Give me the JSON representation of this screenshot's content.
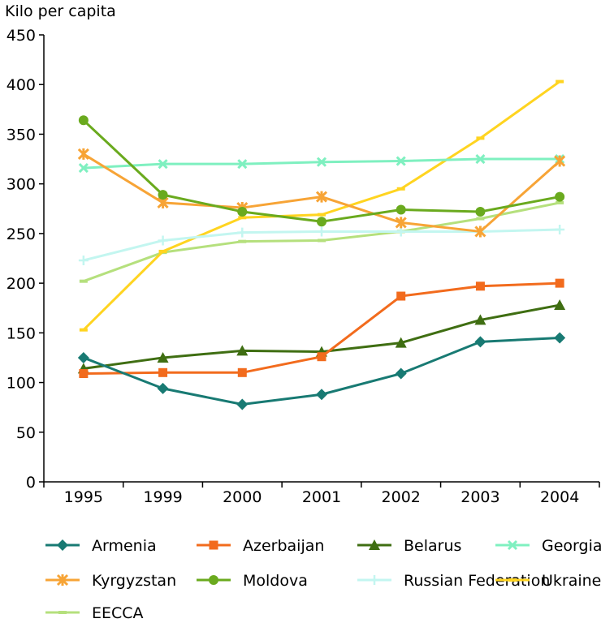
{
  "chart_data": {
    "type": "line",
    "ylabel": "Kilo per capita",
    "ylim": [
      0,
      450
    ],
    "y_ticks": [
      0,
      50,
      100,
      150,
      200,
      250,
      300,
      350,
      400,
      450
    ],
    "categories": [
      "1995",
      "1999",
      "2000",
      "2001",
      "2002",
      "2003",
      "2004"
    ],
    "grid": false,
    "legend_position": "bottom",
    "series": [
      {
        "name": "Armenia",
        "color": "#187a73",
        "marker": "diamond",
        "values": [
          125,
          94,
          78,
          88,
          109,
          141,
          145
        ]
      },
      {
        "name": "Azerbaijan",
        "color": "#f26b1d",
        "marker": "square",
        "values": [
          109,
          110,
          110,
          126,
          187,
          197,
          200
        ]
      },
      {
        "name": "Belarus",
        "color": "#3f6e12",
        "marker": "triangle",
        "values": [
          114,
          125,
          132,
          131,
          140,
          163,
          178
        ]
      },
      {
        "name": "Georgia",
        "color": "#7ff0c0",
        "marker": "x",
        "values": [
          316,
          320,
          320,
          322,
          323,
          325,
          325
        ]
      },
      {
        "name": "Kyrgyzstan",
        "color": "#f7a436",
        "marker": "asterisk",
        "values": [
          330,
          281,
          276,
          287,
          261,
          252,
          323
        ]
      },
      {
        "name": "Moldova",
        "color": "#6aaa1e",
        "marker": "circle",
        "values": [
          364,
          289,
          272,
          262,
          274,
          272,
          287
        ]
      },
      {
        "name": "Russian Federation",
        "color": "#c3f6f0",
        "marker": "plus",
        "values": [
          223,
          243,
          251,
          252,
          252,
          252,
          254
        ]
      },
      {
        "name": "Ukraine",
        "color": "#ffd420",
        "marker": "dash",
        "values": [
          153,
          232,
          266,
          269,
          295,
          346,
          403
        ]
      },
      {
        "name": "EECCA",
        "color": "#b5e07d",
        "marker": "dash",
        "values": [
          202,
          231,
          242,
          243,
          252,
          265,
          281
        ]
      }
    ]
  }
}
